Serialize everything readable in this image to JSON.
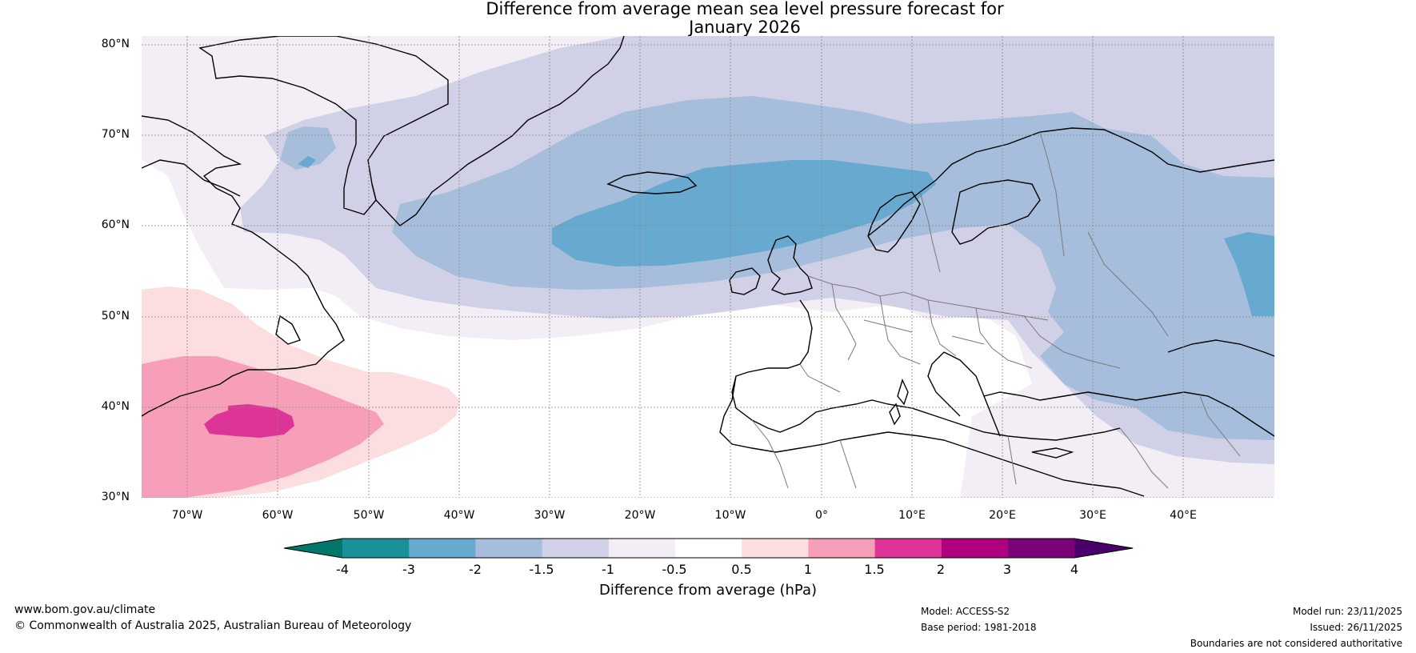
{
  "title": {
    "line1": "Difference from average mean sea level pressure forecast for",
    "line2": "January 2026"
  },
  "map": {
    "lat_labels": [
      "80°N",
      "70°N",
      "60°N",
      "50°N",
      "40°N",
      "30°N"
    ],
    "lon_labels": [
      "70°W",
      "60°W",
      "50°W",
      "40°W",
      "30°W",
      "20°W",
      "10°W",
      "0°",
      "10°E",
      "20°E",
      "30°E",
      "40°E"
    ],
    "extent": {
      "lon_min": -75,
      "lon_max": 50,
      "lat_min": 30,
      "lat_max": 81
    }
  },
  "colorbar": {
    "label": "Difference from average (hPa)",
    "ticks": [
      "-4",
      "-3",
      "-2",
      "-1.5",
      "-1",
      "-0.5",
      "0.5",
      "1",
      "1.5",
      "2",
      "3",
      "4"
    ],
    "colors": [
      "#1a9099",
      "#67a9cf",
      "#a6bddb",
      "#d0d1e6",
      "#f3eef6",
      "#ffffff",
      "#fcdde0",
      "#f79fb8",
      "#dd3497",
      "#ae017e",
      "#7a0177"
    ],
    "under_color": "#01766b",
    "over_color": "#49006a"
  },
  "footer": {
    "website": "www.bom.gov.au/climate",
    "copyright": "© Commonwealth of Australia 2025, Australian Bureau of Meteorology",
    "model": "Model: ACCESS-S2",
    "base_period": "Base period: 1981-2018",
    "model_run": "Model run: 23/11/2025",
    "issued": "Issued: 26/11/2025",
    "disclaimer": "Boundaries are not considered authoritative"
  }
}
